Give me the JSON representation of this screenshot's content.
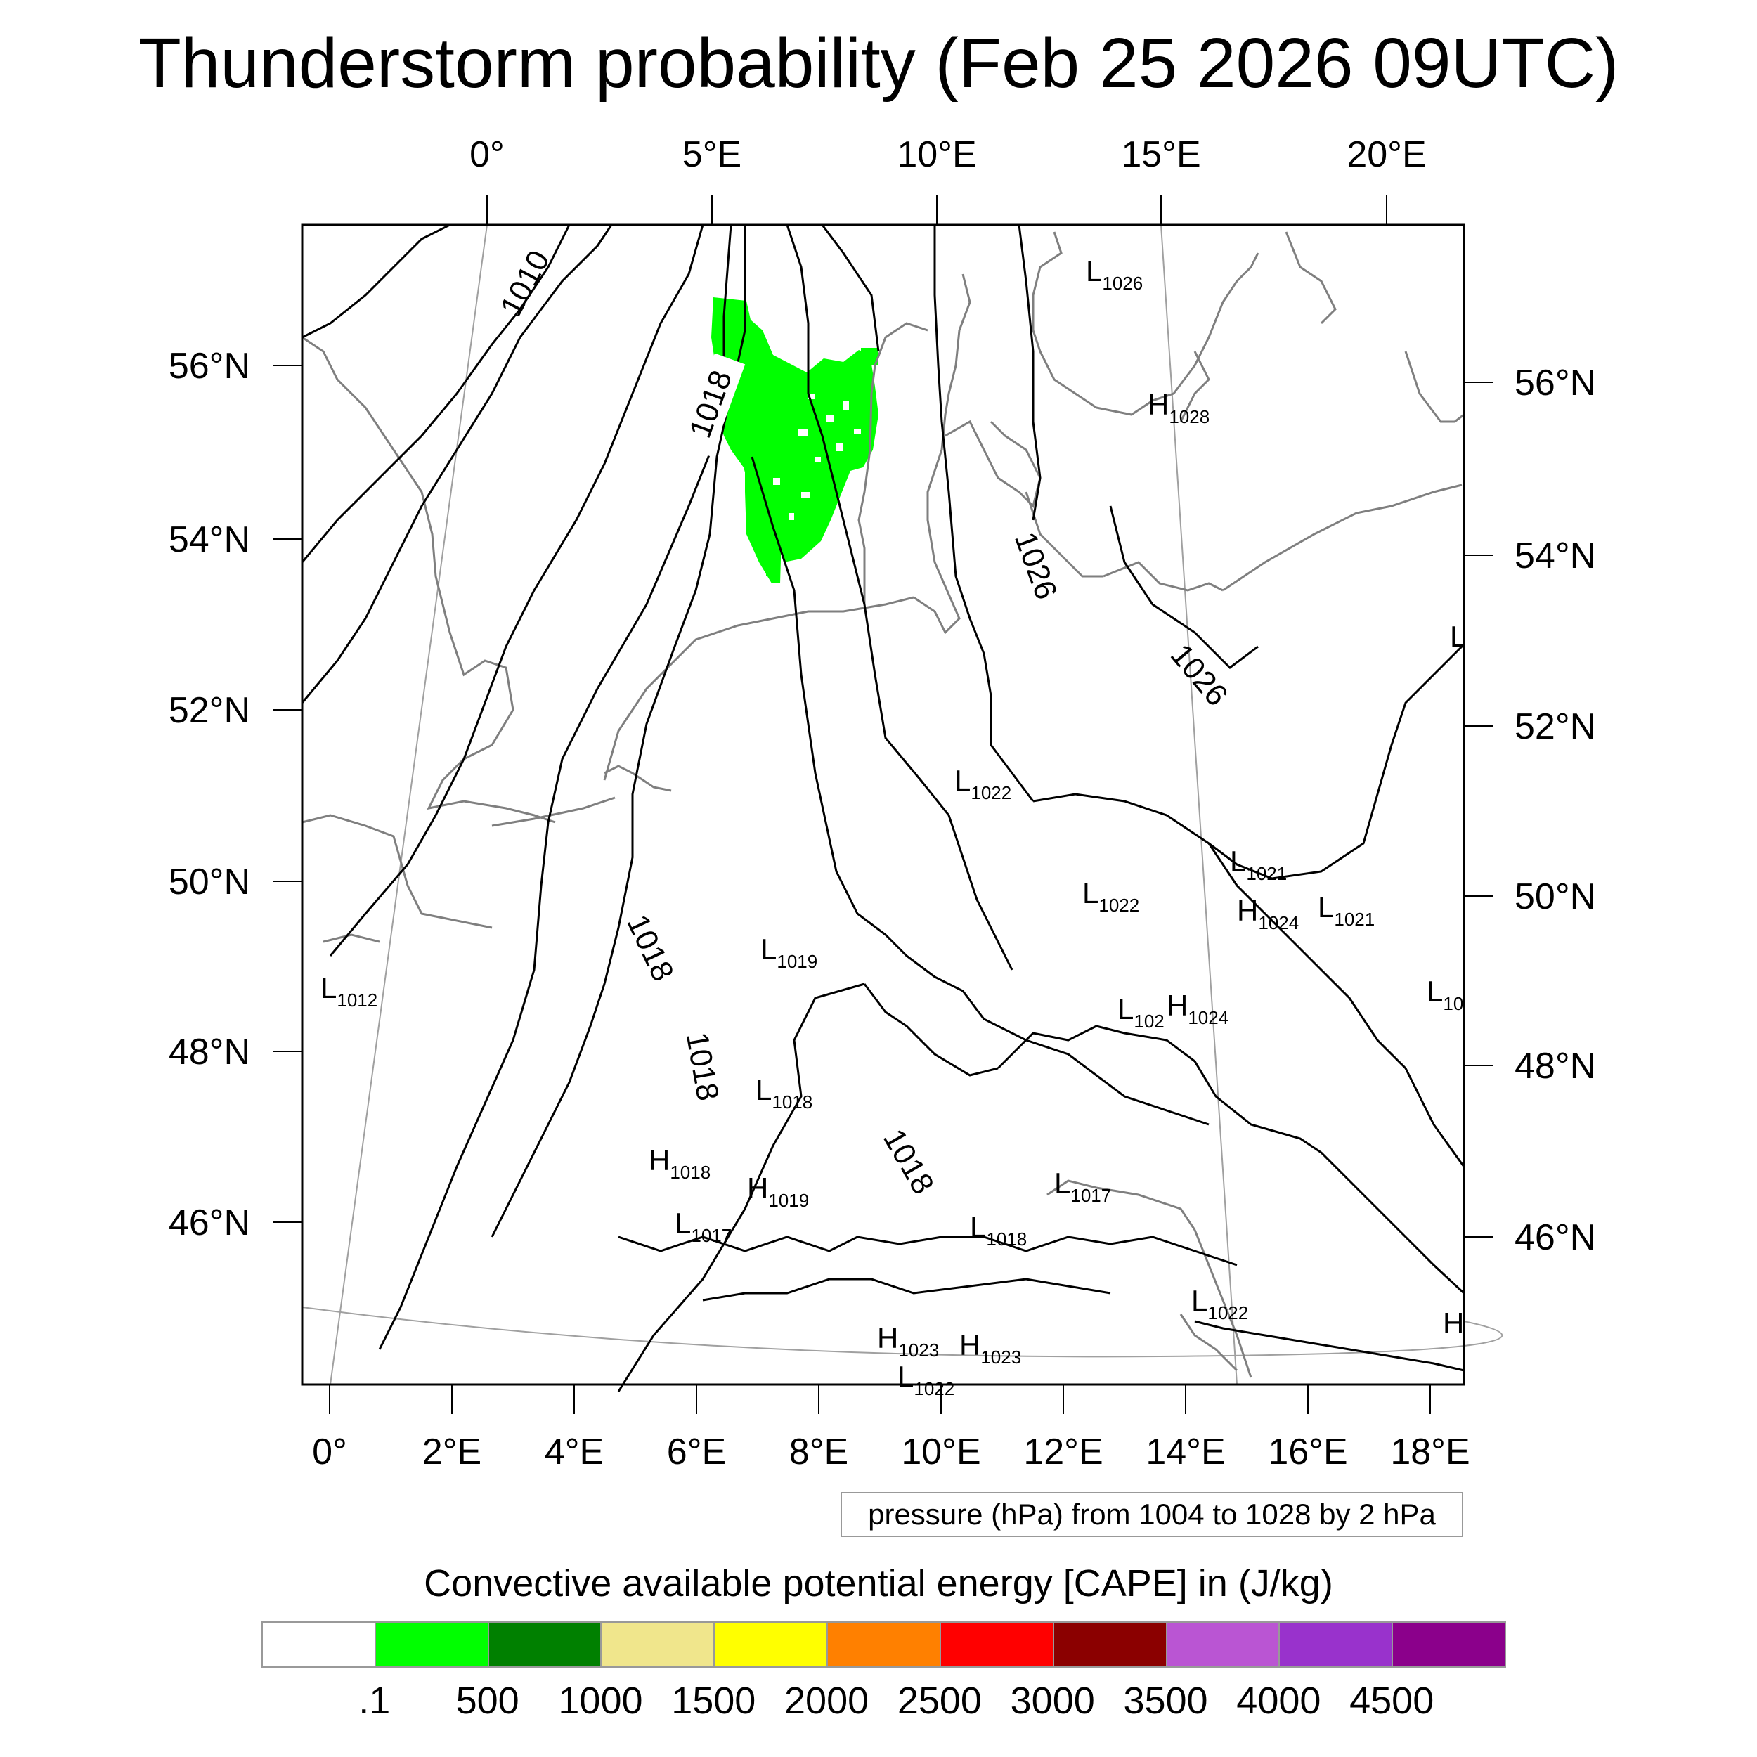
{
  "title": "Thunderstorm probability (Feb 25 2026 09UTC)",
  "top_lon_labels": [
    "0°",
    "5°E",
    "10°E",
    "15°E",
    "20°E"
  ],
  "bottom_lon_labels": [
    "0°",
    "2°E",
    "4°E",
    "6°E",
    "8°E",
    "10°E",
    "12°E",
    "14°E",
    "16°E",
    "18°E"
  ],
  "left_lat_labels": [
    "56°N",
    "54°N",
    "52°N",
    "50°N",
    "48°N",
    "46°N"
  ],
  "right_lat_labels": [
    "56°N",
    "54°N",
    "52°N",
    "50°N",
    "48°N",
    "46°N"
  ],
  "contour_labels": [
    "1010",
    "1018",
    "1026",
    "1026",
    "1018",
    "1018",
    "1018"
  ],
  "pressure_centers": [
    {
      "type": "L",
      "value": "1026"
    },
    {
      "type": "H",
      "value": "1028"
    },
    {
      "type": "L",
      "value": "1022"
    },
    {
      "type": "L",
      "value": "1021"
    },
    {
      "type": "L",
      "value": "1022"
    },
    {
      "type": "H",
      "value": "1024"
    },
    {
      "type": "L",
      "value": "1021"
    },
    {
      "type": "L",
      "value": "1019"
    },
    {
      "type": "L",
      "value": "1012"
    },
    {
      "type": "L",
      "value": "102"
    },
    {
      "type": "H",
      "value": "1024"
    },
    {
      "type": "L",
      "value": "10"
    },
    {
      "type": "L",
      "value": "1018"
    },
    {
      "type": "H",
      "value": "1018"
    },
    {
      "type": "H",
      "value": "1019"
    },
    {
      "type": "L",
      "value": "1017"
    },
    {
      "type": "L",
      "value": "1017"
    },
    {
      "type": "L",
      "value": "1018"
    },
    {
      "type": "L",
      "value": "1022"
    },
    {
      "type": "H",
      "value": "1023"
    },
    {
      "type": "H",
      "value": "1023"
    },
    {
      "type": "L",
      "value": ""
    },
    {
      "type": "H",
      "value": ""
    },
    {
      "type": "L",
      "value": "1022"
    }
  ],
  "contour_note": "pressure (hPa) from 1004 to 1028 by 2 hPa",
  "colorbar": {
    "title": "Convective available potential energy [CAPE] in (J/kg)",
    "colors": [
      "#ffffff",
      "#00ff00",
      "#008000",
      "#f0e68c",
      "#ffff00",
      "#ff8000",
      "#ff0000",
      "#8b0000",
      "#ba55d3",
      "#9932cc",
      "#8b008b"
    ],
    "labels": [
      ".1",
      "500",
      "1000",
      "1500",
      "2000",
      "2500",
      "3000",
      "3500",
      "4000",
      "4500"
    ]
  },
  "colors": {
    "coastline": "#7f7f7f",
    "isobar": "#000000",
    "graticule": "#a0a0a0",
    "cape_area": "#00ff00"
  }
}
